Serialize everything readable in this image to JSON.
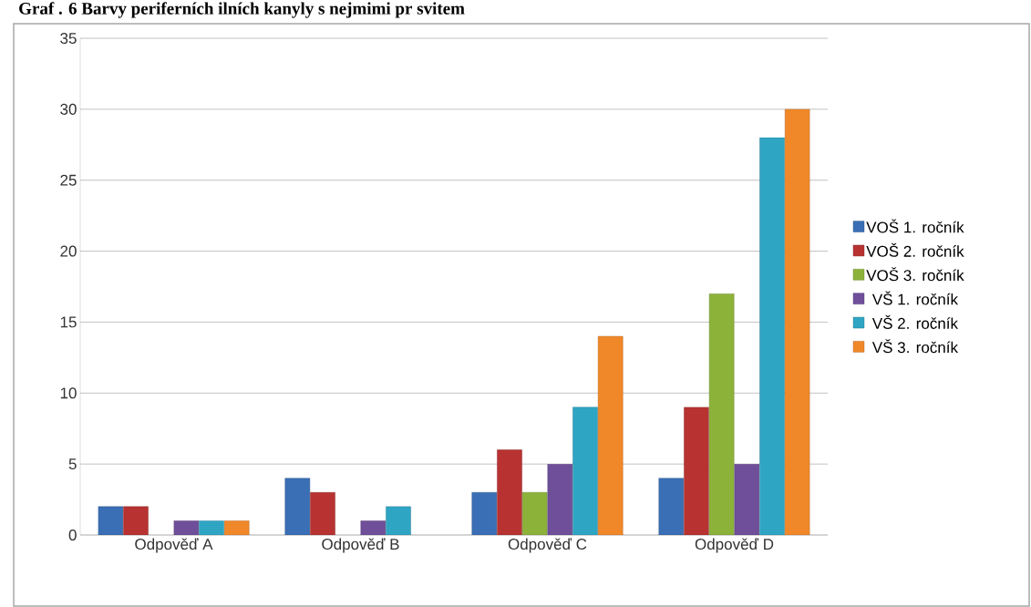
{
  "chart_data": {
    "type": "bar",
    "title": "Graf . 6 Barvy periferních ilních kanyly s nejmimi pr svitem",
    "categories": [
      "Odpověď A",
      "Odpověď B",
      "Odpověď C",
      "Odpověď D"
    ],
    "series": [
      {
        "name": "VOŠ 1. ročník",
        "color": "#3a6fb5",
        "values": [
          2,
          4,
          3,
          4
        ]
      },
      {
        "name": "VOŠ 2. ročník",
        "color": "#b83232",
        "values": [
          2,
          3,
          6,
          9
        ]
      },
      {
        "name": "VOŠ 3. ročník",
        "color": "#8db23a",
        "values": [
          0,
          0,
          3,
          17
        ]
      },
      {
        "name": "VŠ 1. ročník",
        "color": "#6f4f9a",
        "values": [
          1,
          1,
          5,
          5
        ]
      },
      {
        "name": "VŠ 2. ročník",
        "color": "#2fa5c4",
        "values": [
          1,
          2,
          9,
          28
        ]
      },
      {
        "name": "VŠ 3. ročník",
        "color": "#f0882a",
        "values": [
          1,
          0,
          14,
          30
        ]
      }
    ],
    "ylim": [
      0,
      35
    ],
    "yticks": [
      0,
      5,
      10,
      15,
      20,
      25,
      30,
      35
    ],
    "grid": "y",
    "legend": "right"
  }
}
